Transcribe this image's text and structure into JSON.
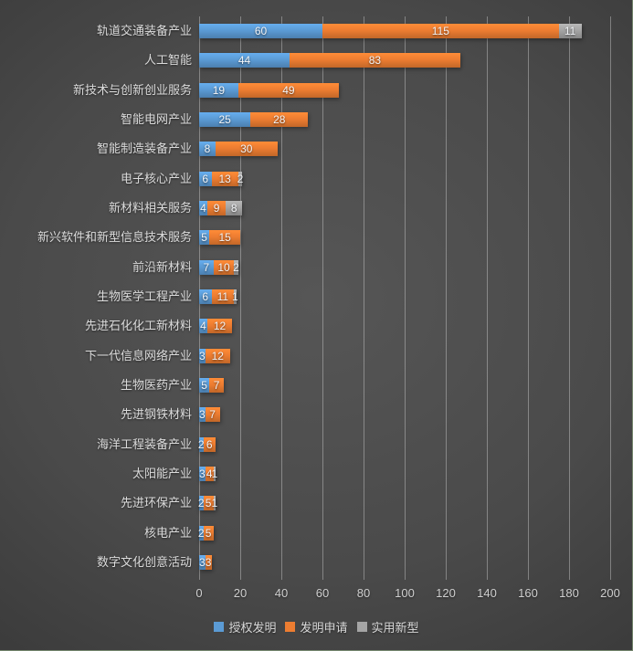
{
  "chart_data": {
    "type": "bar",
    "orientation": "horizontal",
    "stacked": true,
    "title": "",
    "xlabel": "",
    "ylabel": "",
    "categories": [
      "轨道交通装备产业",
      "人工智能",
      "新技术与创新创业服务",
      "智能电网产业",
      "智能制造装备产业",
      "电子核心产业",
      "新材料相关服务",
      "新兴软件和新型信息技术服务",
      "前沿新材料",
      "生物医学工程产业",
      "先进石化化工新材料",
      "下一代信息网络产业",
      "生物医药产业",
      "先进钢铁材料",
      "海洋工程装备产业",
      "太阳能产业",
      "先进环保产业",
      "核电产业",
      "数字文化创意活动"
    ],
    "series": [
      {
        "name": "授权发明",
        "color": "#5B9BD5",
        "values": [
          60,
          44,
          19,
          25,
          8,
          6,
          4,
          5,
          7,
          6,
          4,
          3,
          5,
          3,
          2,
          3,
          2,
          2,
          3
        ]
      },
      {
        "name": "发明申请",
        "color": "#ED7D31",
        "values": [
          115,
          83,
          49,
          28,
          30,
          13,
          9,
          15,
          10,
          11,
          12,
          12,
          7,
          7,
          6,
          4,
          5,
          5,
          3
        ]
      },
      {
        "name": "实用新型",
        "color": "#A5A5A5",
        "values": [
          11,
          0,
          0,
          0,
          0,
          2,
          8,
          0,
          2,
          1,
          0,
          0,
          0,
          0,
          0,
          1,
          1,
          0,
          0
        ]
      }
    ],
    "x_axis": {
      "ticks": [
        0,
        20,
        40,
        60,
        80,
        100,
        120,
        140,
        160,
        180,
        200
      ],
      "min": 0,
      "max": 200
    },
    "legend": [
      "授权发明",
      "发明申请",
      "实用新型"
    ],
    "legend_position": "bottom",
    "grid": true,
    "data_labels": true
  },
  "style": {
    "background_center": "#565656",
    "background_edge": "#232323",
    "gridline_color": "rgba(255,255,255,0.33)",
    "label_color": "#dcdcdc",
    "value_label_color": "#f2f4f7"
  }
}
